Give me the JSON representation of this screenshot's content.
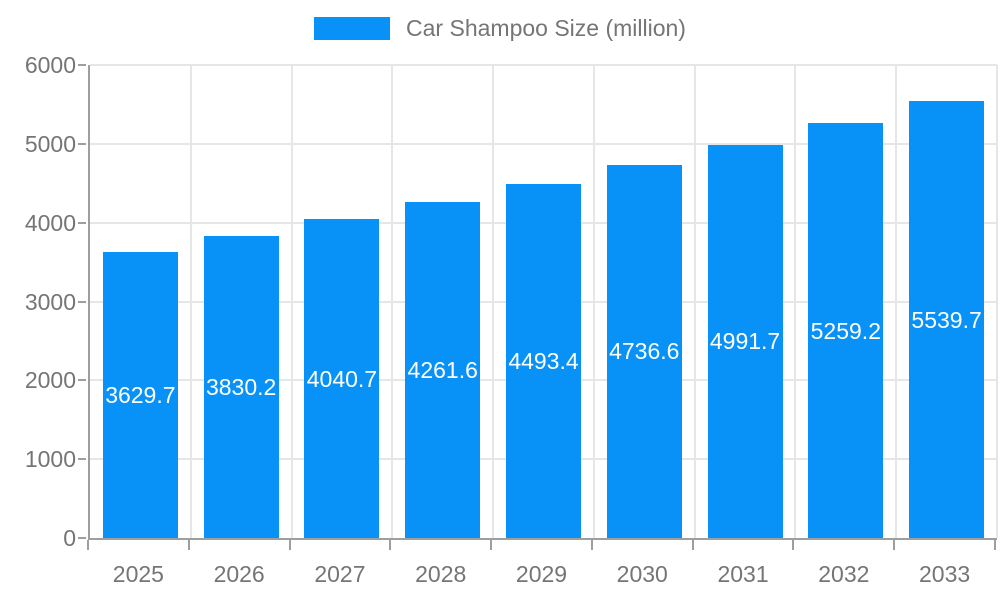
{
  "chart_data": {
    "type": "bar",
    "title": "Car Shampoo Size (million)",
    "legend": {
      "label": "Car Shampoo Size (million)",
      "position": "top-center"
    },
    "categories": [
      "2025",
      "2026",
      "2027",
      "2028",
      "2029",
      "2030",
      "2031",
      "2032",
      "2033"
    ],
    "series": [
      {
        "name": "Car Shampoo Size (million)",
        "values": [
          3629.7,
          3830.2,
          4040.7,
          4261.6,
          4493.4,
          4736.6,
          4991.7,
          5259.2,
          5539.7
        ]
      }
    ],
    "value_labels": [
      "3629.7",
      "3830.2",
      "4040.7",
      "4261.6",
      "4493.4",
      "4736.6",
      "4991.7",
      "5259.2",
      "5539.7"
    ],
    "xlabel": "",
    "ylabel": "",
    "ylim": [
      0,
      6000
    ],
    "ytick_step": 1000,
    "yticks": [
      "0",
      "1000",
      "2000",
      "3000",
      "4000",
      "5000",
      "6000"
    ],
    "grid": true,
    "colors": {
      "bar": "#0892F8",
      "bar_value_text": "#FFFFFF",
      "axis_text": "#757575",
      "axis_line": "#9E9E9E",
      "gridline": "#E6E6E6",
      "background": "#FFFFFF"
    }
  }
}
